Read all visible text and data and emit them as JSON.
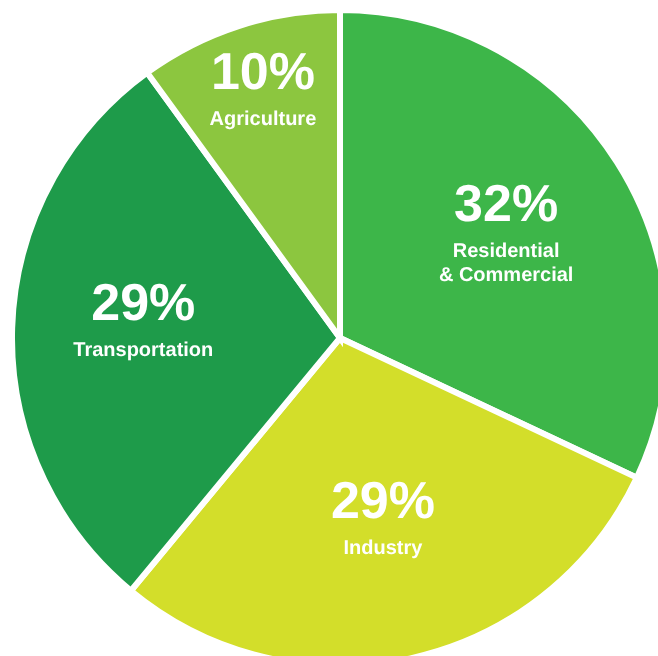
{
  "chart_data": {
    "type": "pie",
    "categories": [
      "Residential & Commercial",
      "Industry",
      "Transportation",
      "Agriculture"
    ],
    "values": [
      32,
      29,
      29,
      10
    ],
    "colors": [
      "#3db649",
      "#d3de2a",
      "#1e9b4a",
      "#8cc63f"
    ],
    "value_labels": [
      "32%",
      "29%",
      "29%",
      "10%"
    ]
  }
}
